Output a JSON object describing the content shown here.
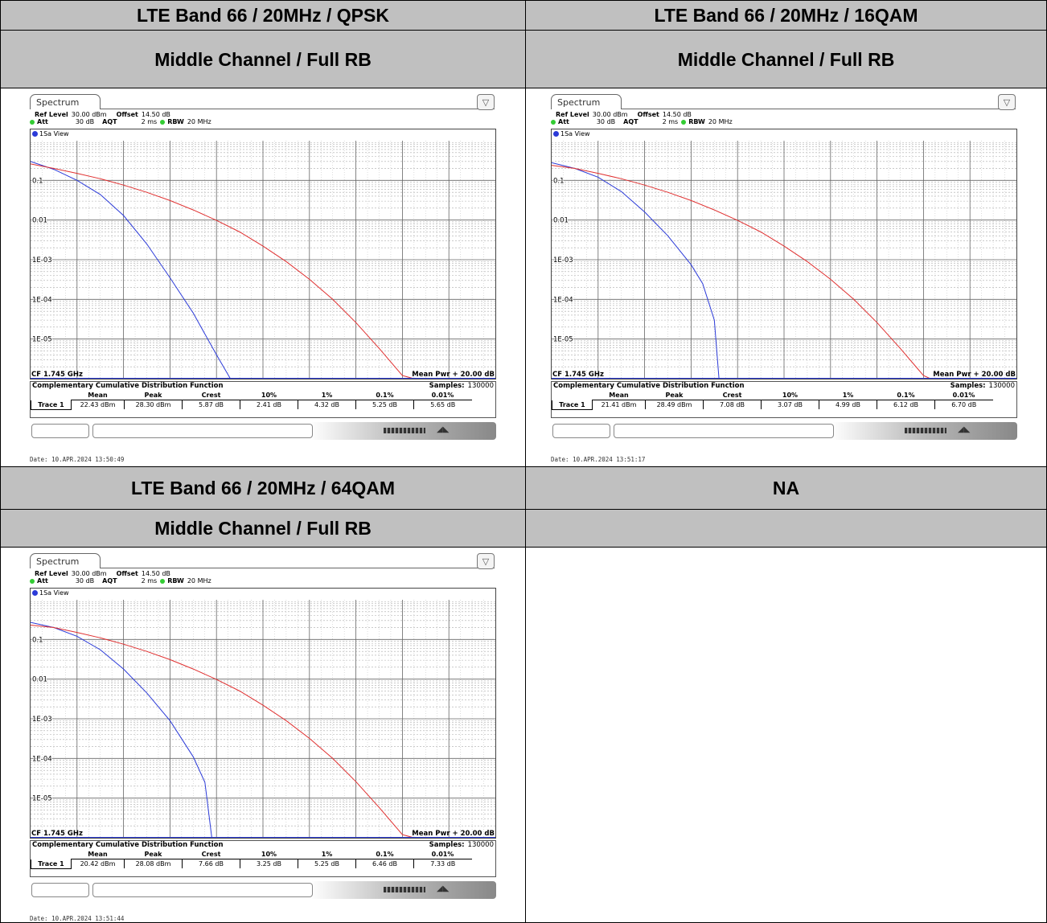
{
  "cells": {
    "h1": "LTE Band 66 / 20MHz / QPSK",
    "h2": "LTE Band 66 / 20MHz / 16QAM",
    "h3": "LTE Band 66 / 20MHz / 64QAM",
    "h4": "NA",
    "s1": "Middle Channel / Full RB",
    "s2": "Middle Channel / Full RB",
    "s3": "Middle Channel / Full RB",
    "s4": ""
  },
  "analyzer": {
    "tab": "Spectrum",
    "ref_level_label": "Ref Level",
    "ref_level_value": "30.00 dBm",
    "offset_label": "Offset",
    "offset_value": "14.50 dB",
    "att_label": "Att",
    "att_value": "30 dB",
    "aqt_label": "AQT",
    "aqt_value": "2 ms",
    "rbw_label": "RBW",
    "rbw_value": "20 MHz",
    "view_label": "1Sa View",
    "cf": "CF 1.745 GHz",
    "mean_pwr": "Mean Pwr + 20.00 dB",
    "ccdf_title": "Complementary Cumulative Distribution Function",
    "samples_label": "Samples:",
    "samples_value": "130000",
    "col_headers": [
      "Mean",
      "Peak",
      "Crest",
      "10%",
      "1%",
      "0.1%",
      "0.01%"
    ],
    "trace_label": "Trace 1",
    "ytick_labels": [
      "0.1",
      "0.01",
      "1E-03",
      "1E-04",
      "1E-05"
    ]
  },
  "chart_data": [
    {
      "type": "line",
      "title": "",
      "xlabel": "",
      "ylabel": "",
      "y_scale": "log",
      "ylim": [
        1e-06,
        1
      ],
      "xlim": [
        0,
        20
      ],
      "grid": true,
      "yticks": [
        0.1,
        0.01,
        0.001,
        0.0001,
        1e-05
      ],
      "ytick_labels": [
        "0.1",
        "0.01",
        "1E-03",
        "1E-04",
        "1E-05"
      ],
      "measurements": [
        "22.43 dBm",
        "28.30 dBm",
        "5.87 dB",
        "2.41 dB",
        "4.32 dB",
        "5.25 dB",
        "5.65 dB"
      ],
      "date": "Date: 10.APR.2024  13:50:49",
      "series": [
        {
          "color": "#2b3ad8",
          "x": [
            0,
            1,
            2,
            3,
            4,
            5,
            6,
            7,
            8,
            8.6
          ],
          "y": [
            0.3,
            0.19,
            0.1,
            0.044,
            0.013,
            0.0025,
            0.00035,
            4.5e-05,
            4e-06,
            1e-06
          ]
        },
        {
          "color": "#e03030",
          "x": [
            0,
            1,
            2,
            3,
            4,
            5,
            6,
            7,
            8,
            9,
            10,
            11,
            12,
            13,
            14,
            15,
            16,
            16.5
          ],
          "y": [
            0.26,
            0.2,
            0.15,
            0.11,
            0.076,
            0.05,
            0.031,
            0.018,
            0.0098,
            0.005,
            0.0022,
            0.0009,
            0.00032,
            0.0001,
            2.6e-05,
            5.8e-06,
            1.2e-06,
            1e-06
          ]
        }
      ]
    },
    {
      "type": "line",
      "title": "",
      "xlabel": "",
      "ylabel": "",
      "y_scale": "log",
      "ylim": [
        1e-06,
        1
      ],
      "xlim": [
        0,
        20
      ],
      "grid": true,
      "yticks": [
        0.1,
        0.01,
        0.001,
        0.0001,
        1e-05
      ],
      "ytick_labels": [
        "0.1",
        "0.01",
        "1E-03",
        "1E-04",
        "1E-05"
      ],
      "measurements": [
        "21.41 dBm",
        "28.49 dBm",
        "7.08 dB",
        "3.07 dB",
        "4.99 dB",
        "6.12 dB",
        "6.70 dB"
      ],
      "date": "Date: 10.APR.2024  13:51:17",
      "series": [
        {
          "color": "#2b3ad8",
          "x": [
            0,
            1,
            2,
            3,
            4,
            5,
            6,
            6.5,
            7,
            7.2
          ],
          "y": [
            0.28,
            0.2,
            0.12,
            0.052,
            0.016,
            0.004,
            0.00075,
            0.00025,
            3e-05,
            1e-06
          ]
        },
        {
          "color": "#e03030",
          "x": [
            0,
            1,
            2,
            3,
            4,
            5,
            6,
            7,
            8,
            9,
            10,
            11,
            12,
            13,
            14,
            15,
            16,
            16.3
          ],
          "y": [
            0.24,
            0.2,
            0.15,
            0.11,
            0.076,
            0.05,
            0.031,
            0.018,
            0.0098,
            0.005,
            0.0022,
            0.0009,
            0.00032,
            0.0001,
            2.6e-05,
            5.8e-06,
            1.2e-06,
            1e-06
          ]
        }
      ]
    },
    {
      "type": "line",
      "title": "",
      "xlabel": "",
      "ylabel": "",
      "y_scale": "log",
      "ylim": [
        1e-06,
        1
      ],
      "xlim": [
        0,
        20
      ],
      "grid": true,
      "yticks": [
        0.1,
        0.01,
        0.001,
        0.0001,
        1e-05
      ],
      "ytick_labels": [
        "0.1",
        "0.01",
        "1E-03",
        "1E-04",
        "1E-05"
      ],
      "measurements": [
        "20.42 dBm",
        "28.08 dBm",
        "7.66 dB",
        "3.25 dB",
        "5.25 dB",
        "6.46 dB",
        "7.33 dB"
      ],
      "date": "Date: 10.APR.2024  13:51:44",
      "series": [
        {
          "color": "#2b3ad8",
          "x": [
            0,
            1,
            2,
            3,
            4,
            5,
            6,
            7,
            7.5,
            7.8
          ],
          "y": [
            0.27,
            0.2,
            0.12,
            0.055,
            0.018,
            0.0045,
            0.0009,
            0.00011,
            2.5e-05,
            1e-06
          ]
        },
        {
          "color": "#e03030",
          "x": [
            0,
            1,
            2,
            3,
            4,
            5,
            6,
            7,
            8,
            9,
            10,
            11,
            12,
            13,
            14,
            15,
            16,
            16.5
          ],
          "y": [
            0.23,
            0.2,
            0.15,
            0.11,
            0.076,
            0.05,
            0.031,
            0.018,
            0.0098,
            0.005,
            0.0022,
            0.0009,
            0.00032,
            0.0001,
            2.6e-05,
            5.8e-06,
            1.2e-06,
            1e-06
          ]
        }
      ]
    }
  ]
}
